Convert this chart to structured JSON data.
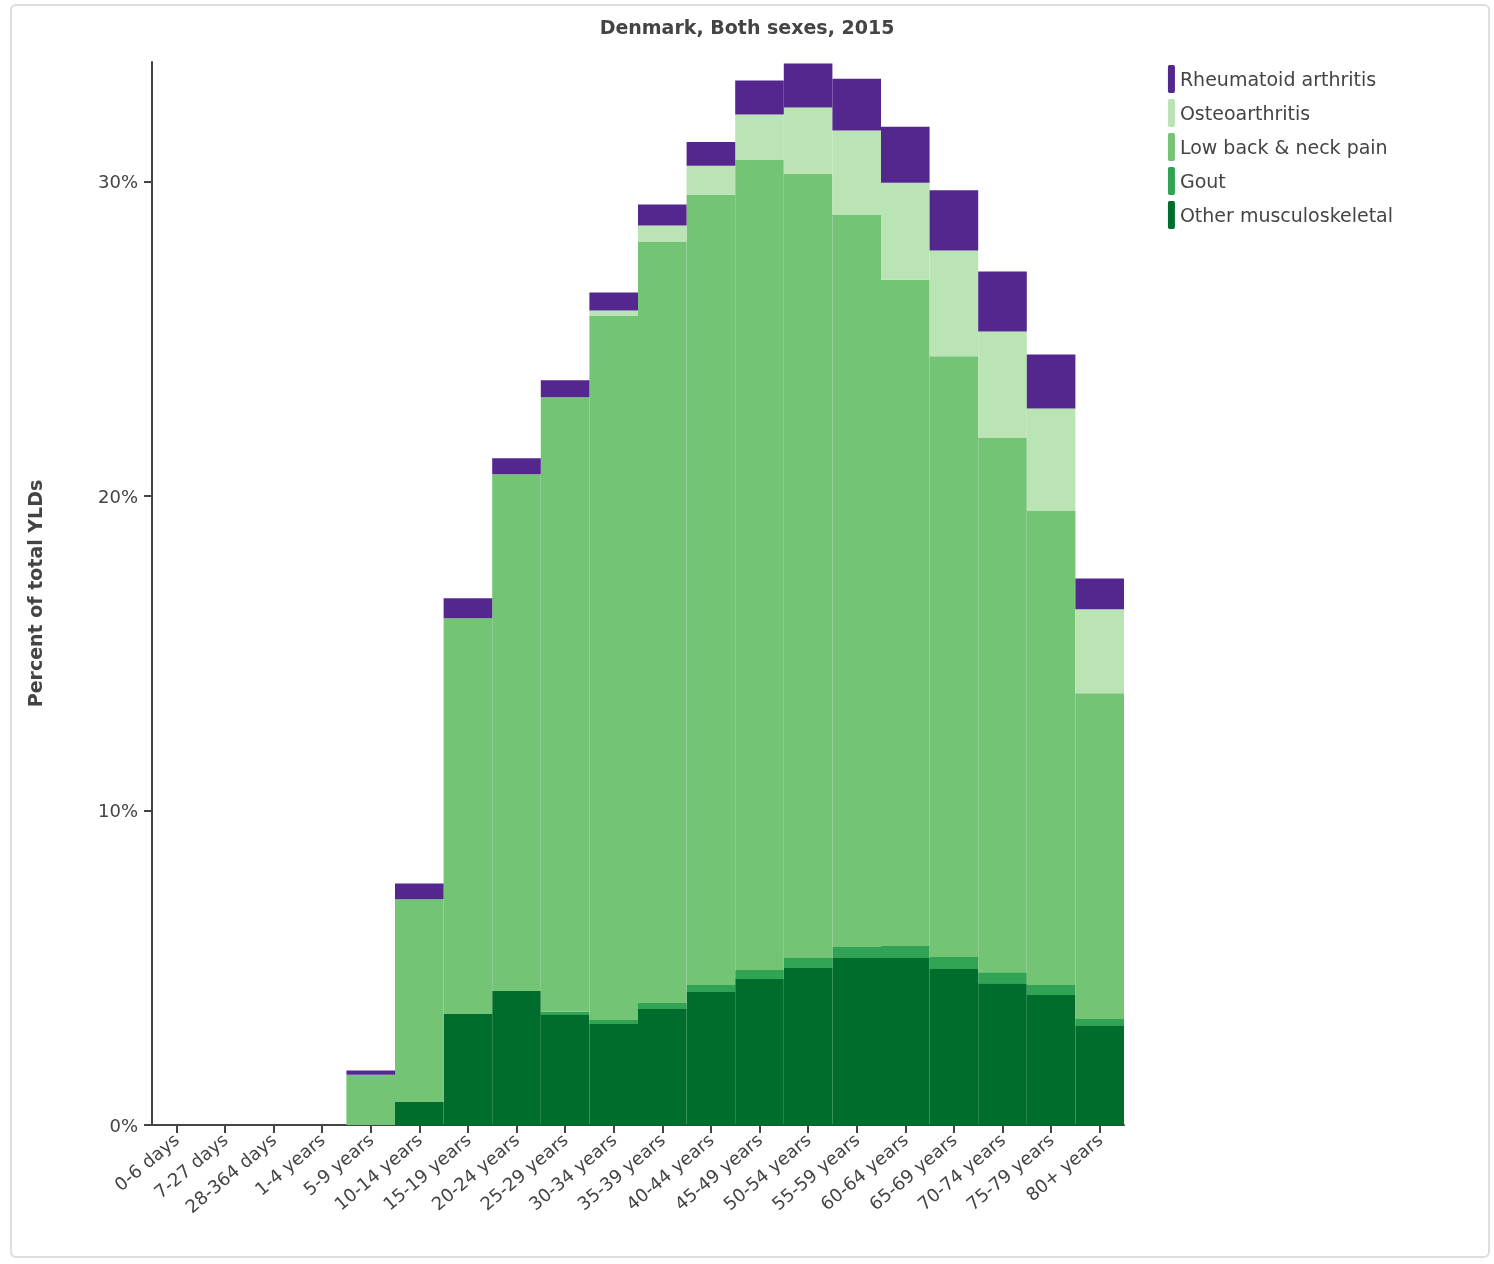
{
  "chart_data": {
    "type": "bar",
    "title": "Denmark, Both sexes, 2015",
    "ylabel": "Percent of total YLDs",
    "stacked": true,
    "grid": false,
    "legend": "top right",
    "categories": [
      "0-6 days",
      "7-27 days",
      "28-364 days",
      "1-4 years",
      "5-9 years",
      "10-14 years",
      "15-19 years",
      "20-24 years",
      "25-29 years",
      "30-34 years",
      "35-39 years",
      "40-44 years",
      "45-49 years",
      "50-54 years",
      "55-59 years",
      "60-64 years",
      "65-69 years",
      "70-74 years",
      "75-79 years",
      "80+ years"
    ],
    "ylim": [
      0,
      33.8
    ],
    "yticks": [
      {
        "value": 0,
        "label": "0%"
      },
      {
        "value": 10,
        "label": "10%"
      },
      {
        "value": 20,
        "label": "20%"
      },
      {
        "value": 30,
        "label": "30%"
      }
    ],
    "series": [
      {
        "name": "Other musculoskeletal",
        "color": "#006d2c",
        "values": [
          0,
          0,
          0,
          0,
          0,
          0.73,
          3.53,
          4.26,
          3.5,
          3.21,
          3.69,
          4.23,
          4.64,
          4.99,
          5.31,
          5.31,
          4.96,
          4.51,
          4.13,
          3.15
        ]
      },
      {
        "name": "Gout",
        "color": "#31a354",
        "values": [
          0,
          0,
          0,
          0,
          0,
          0,
          0,
          0,
          0.1,
          0.13,
          0.19,
          0.22,
          0.29,
          0.32,
          0.35,
          0.38,
          0.38,
          0.35,
          0.32,
          0.22
        ]
      },
      {
        "name": "Low back & neck pain",
        "color": "#74c476",
        "values": [
          0,
          0,
          0,
          0,
          1.6,
          6.45,
          12.58,
          16.43,
          19.54,
          22.4,
          24.21,
          25.13,
          25.77,
          24.94,
          23.29,
          21.19,
          19.1,
          17.0,
          15.09,
          10.36
        ]
      },
      {
        "name": "Osteoarthritis",
        "color": "#bae4b3",
        "values": [
          0,
          0,
          0,
          0,
          0,
          0,
          0,
          0,
          0,
          0.16,
          0.51,
          0.92,
          1.43,
          2.1,
          2.67,
          3.08,
          3.37,
          3.37,
          3.24,
          2.67
        ]
      },
      {
        "name": "Rheumatoid arthritis",
        "color": "#54278f",
        "values": [
          0,
          0,
          0,
          0,
          0.13,
          0.5,
          0.64,
          0.51,
          0.54,
          0.57,
          0.67,
          0.76,
          1.08,
          1.4,
          1.65,
          1.78,
          1.91,
          1.91,
          1.72,
          0.98
        ]
      }
    ]
  }
}
